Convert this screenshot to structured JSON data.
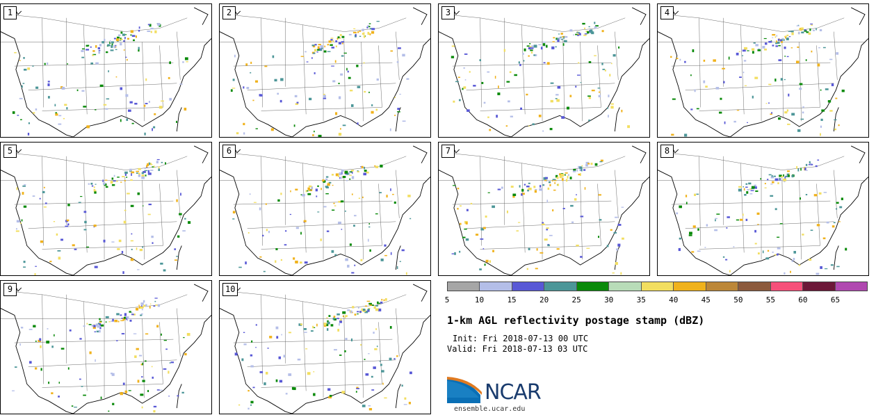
{
  "stamps": [
    {
      "label": "1"
    },
    {
      "label": "2"
    },
    {
      "label": "3"
    },
    {
      "label": "4"
    },
    {
      "label": "5"
    },
    {
      "label": "6"
    },
    {
      "label": "7"
    },
    {
      "label": "8"
    },
    {
      "label": "9"
    },
    {
      "label": "10"
    }
  ],
  "colorbar": {
    "colors": [
      "#a6a6a6",
      "#b4bee8",
      "#5858d6",
      "#4c9698",
      "#0a8a0a",
      "#b8dcb8",
      "#f2de60",
      "#f0b21c",
      "#bc8738",
      "#8c5a3c",
      "#f6507a",
      "#6c1838",
      "#b048b0"
    ],
    "ticks": [
      "5",
      "10",
      "15",
      "20",
      "25",
      "30",
      "35",
      "40",
      "45",
      "50",
      "55",
      "60",
      "65"
    ]
  },
  "title": "1-km AGL reflectivity postage stamp (dBZ)",
  "init": "Init: Fri 2018-07-13 00 UTC",
  "valid": "Valid: Fri 2018-07-13 03 UTC",
  "logo": {
    "text": "NCAR",
    "url": "ensemble.ucar.edu"
  }
}
